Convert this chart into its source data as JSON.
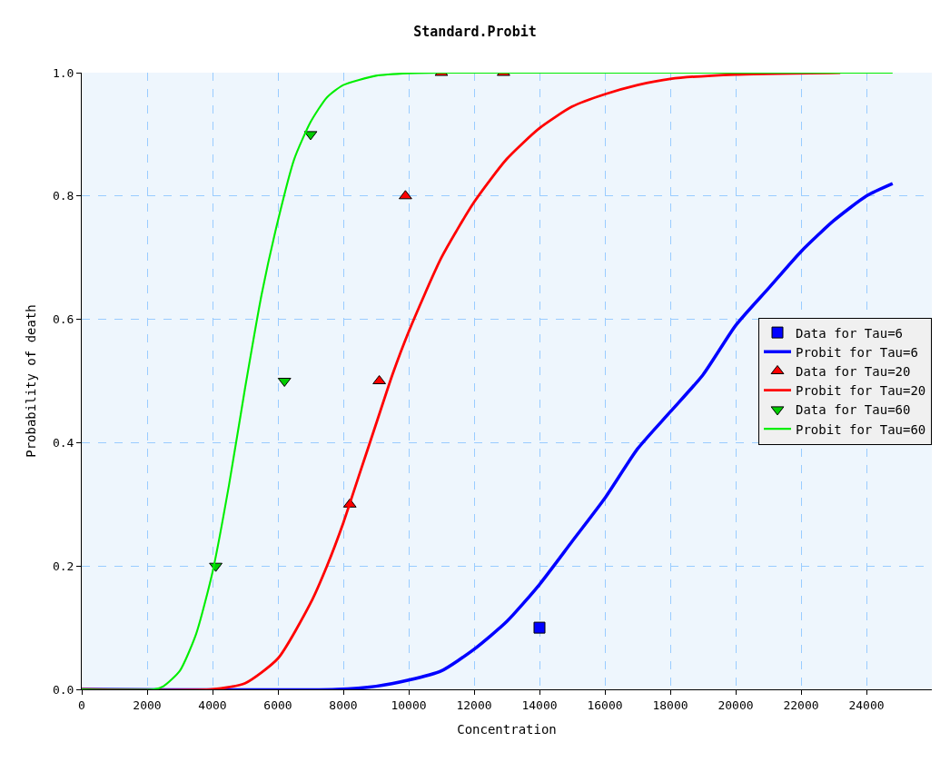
{
  "chart_data": {
    "type": "line",
    "title": "Standard.Probit",
    "xlabel": "Concentration",
    "ylabel": "Probability of death",
    "xlim": [
      0,
      26000
    ],
    "xticks": [
      0,
      2000,
      4000,
      6000,
      8000,
      10000,
      12000,
      14000,
      16000,
      18000,
      20000,
      22000,
      24000
    ],
    "ylim": [
      0,
      1
    ],
    "yticks": [
      {
        "value": 0,
        "label": "0.0"
      },
      0.2,
      0.4,
      0.6,
      0.8,
      {
        "value": 1,
        "label": "1.0"
      }
    ],
    "grid": true,
    "legend": "right",
    "series": [
      {
        "name": "Data for Tau=6",
        "type": "scatter",
        "marker": "square",
        "color": "#0000ff",
        "x": [
          14000
        ],
        "values": [
          0.1
        ]
      },
      {
        "name": "Probit for Tau=6",
        "marker": "none",
        "color": "#0000ff",
        "x": [
          0,
          7800,
          9000,
          10000,
          11000,
          12000,
          13000,
          14000,
          15000,
          16000,
          17000,
          18000,
          19000,
          20000,
          21000,
          22000,
          23000,
          24000,
          24800
        ],
        "values": [
          0,
          0,
          0.005,
          0.015,
          0.03,
          0.065,
          0.11,
          0.17,
          0.24,
          0.31,
          0.39,
          0.45,
          0.51,
          0.59,
          0.65,
          0.71,
          0.76,
          0.8,
          0.82
        ]
      },
      {
        "name": "Data for Tau=20",
        "type": "scatter",
        "marker": "triangle",
        "color": "#ff0000",
        "x": [
          8200,
          9100,
          9900,
          11000,
          12900
        ],
        "values": [
          0.3,
          0.5,
          0.8,
          1.0,
          1.0
        ]
      },
      {
        "name": "Probit for Tau=20",
        "marker": "none",
        "color": "#ff0000",
        "x": [
          0,
          4000,
          5000,
          6000,
          7000,
          7500,
          8000,
          8500,
          9000,
          9500,
          10000,
          11000,
          12000,
          13000,
          14000,
          15000,
          16000,
          17000,
          18000,
          20000,
          23200
        ],
        "values": [
          0,
          0,
          0.01,
          0.05,
          0.14,
          0.2,
          0.27,
          0.35,
          0.43,
          0.51,
          0.58,
          0.7,
          0.79,
          0.86,
          0.91,
          0.945,
          0.965,
          0.98,
          0.99,
          0.997,
          1
        ]
      },
      {
        "name": "Data for Tau=60",
        "type": "scatter",
        "marker": "triangle-down",
        "color": "#00cc00",
        "x": [
          4100,
          6200,
          7000
        ],
        "values": [
          0.2,
          0.5,
          0.9
        ]
      },
      {
        "name": "Probit for Tau=60",
        "marker": "none",
        "color": "#00ee00",
        "x": [
          0,
          2200,
          2500,
          3000,
          3500,
          4000,
          4500,
          5000,
          5500,
          6000,
          6500,
          7000,
          7500,
          8000,
          9000,
          10000,
          11000,
          24800
        ],
        "values": [
          0,
          0,
          0.005,
          0.03,
          0.09,
          0.19,
          0.33,
          0.49,
          0.64,
          0.76,
          0.86,
          0.92,
          0.96,
          0.98,
          0.995,
          0.999,
          1,
          1
        ]
      }
    ]
  }
}
